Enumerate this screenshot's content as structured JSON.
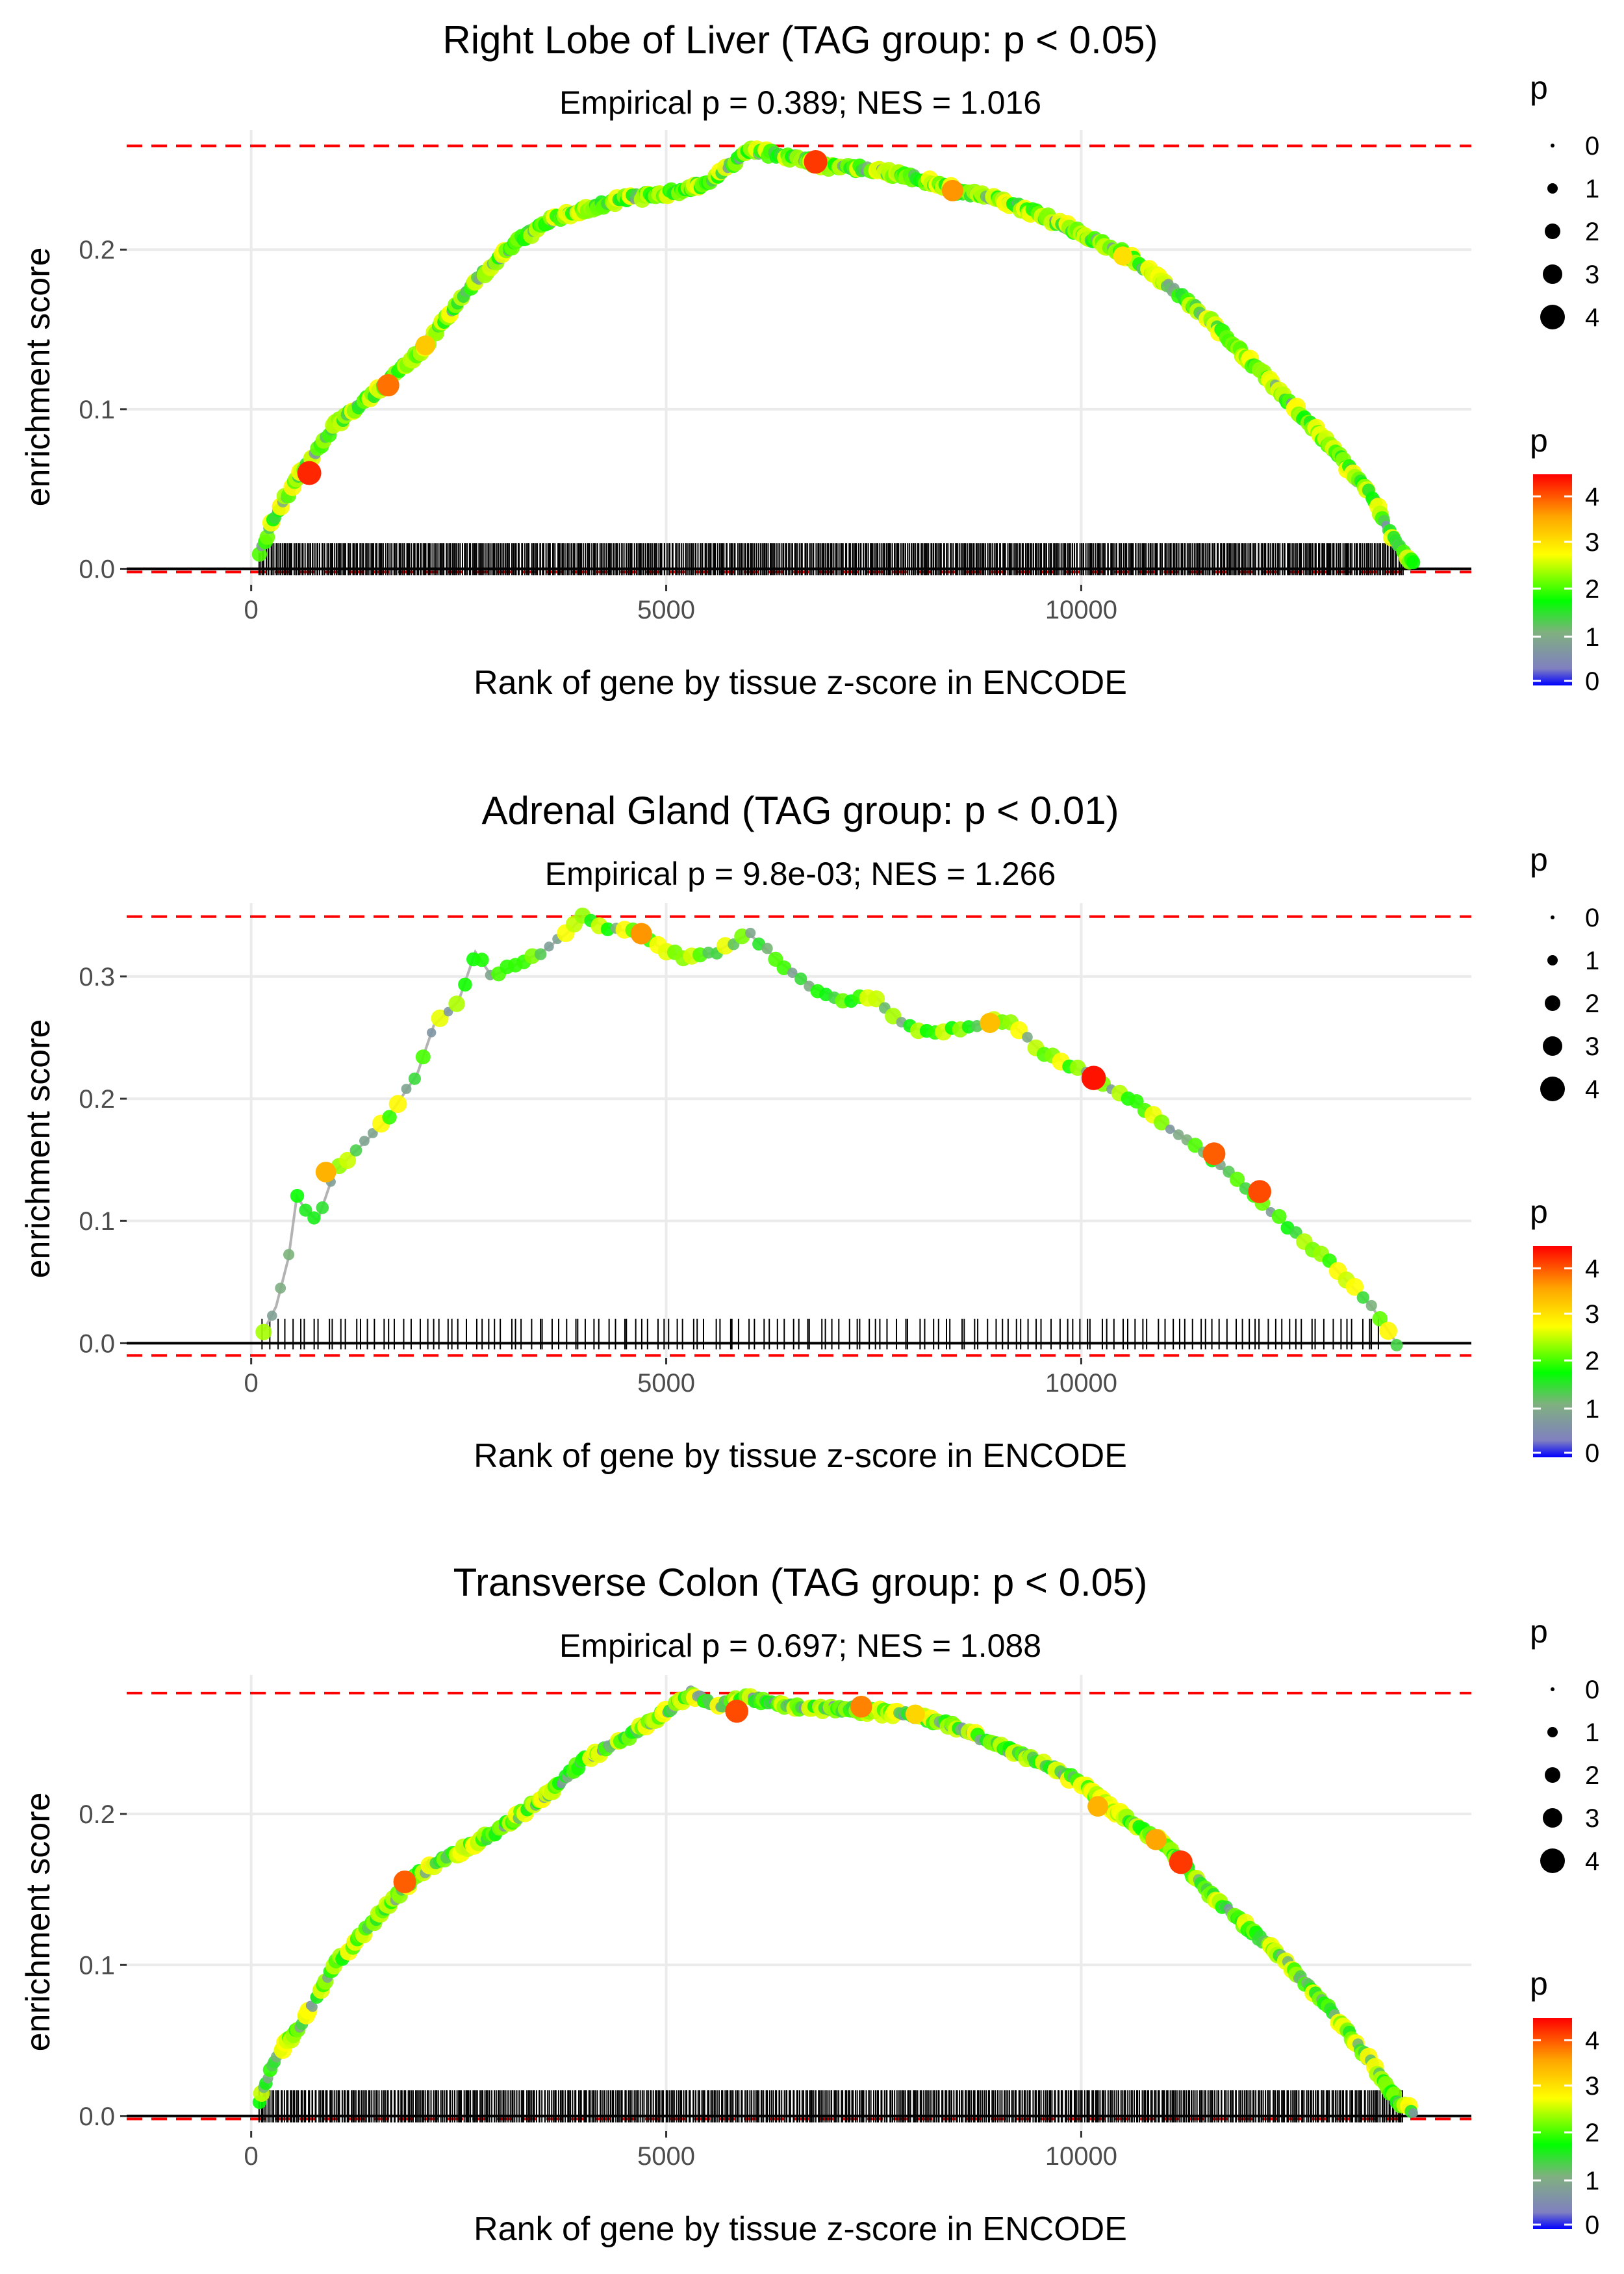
{
  "chart_data": [
    {
      "type": "scatter",
      "title": "Right Lobe of Liver (TAG group: p < 0.05)",
      "subtitle": "Empirical p = 0.389; NES = 1.016",
      "xlabel": "Rank of gene by tissue z-score in ENCODE",
      "ylabel": "enrichment score",
      "xlim": [
        -1500,
        14700
      ],
      "ylim": [
        -0.01,
        0.275
      ],
      "x_ticks": [
        0,
        5000,
        10000
      ],
      "x_tick_labels": [
        "0",
        "5000",
        "10000"
      ],
      "y_ticks": [
        0.0,
        0.1,
        0.2
      ],
      "y_tick_labels": [
        "0.0",
        "0.1",
        "0.2"
      ],
      "max_es": 0.265,
      "min_es": -0.002,
      "curve": [
        [
          100,
          0.01
        ],
        [
          300,
          0.035
        ],
        [
          600,
          0.06
        ],
        [
          1000,
          0.09
        ],
        [
          1600,
          0.115
        ],
        [
          2100,
          0.14
        ],
        [
          2600,
          0.175
        ],
        [
          3200,
          0.205
        ],
        [
          3600,
          0.218
        ],
        [
          4000,
          0.225
        ],
        [
          4500,
          0.232
        ],
        [
          5000,
          0.235
        ],
        [
          5500,
          0.242
        ],
        [
          6000,
          0.262
        ],
        [
          6500,
          0.258
        ],
        [
          7000,
          0.252
        ],
        [
          7500,
          0.25
        ],
        [
          8000,
          0.245
        ],
        [
          8500,
          0.237
        ],
        [
          9000,
          0.232
        ],
        [
          9500,
          0.222
        ],
        [
          10000,
          0.21
        ],
        [
          10500,
          0.198
        ],
        [
          11000,
          0.18
        ],
        [
          11500,
          0.158
        ],
        [
          12000,
          0.132
        ],
        [
          12500,
          0.105
        ],
        [
          13000,
          0.077
        ],
        [
          13500,
          0.045
        ],
        [
          13800,
          0.015
        ],
        [
          14000,
          0.003
        ]
      ],
      "highlight_points": [
        [
          700,
          0.06,
          4.2
        ],
        [
          1650,
          0.115,
          3.8
        ],
        [
          2100,
          0.14,
          3.2
        ],
        [
          6800,
          0.255,
          4.1
        ],
        [
          8450,
          0.237,
          3.6
        ],
        [
          10500,
          0.196,
          3.0
        ]
      ],
      "rug": {
        "start": 100,
        "end": 13900,
        "count": 700,
        "seed": 11,
        "height": 0.016
      },
      "legend_size_title": "p",
      "legend_size_values": [
        "0",
        "1",
        "2",
        "3",
        "4"
      ],
      "legend_color_title": "p",
      "legend_color_ticks": [
        "0",
        "1",
        "2",
        "3",
        "4"
      ]
    },
    {
      "type": "scatter",
      "title": "Adrenal Gland (TAG group: p < 0.01)",
      "subtitle": "Empirical p = 9.8e-03; NES = 1.266",
      "xlabel": "Rank of gene by tissue z-score in ENCODE",
      "ylabel": "enrichment score",
      "xlim": [
        -1500,
        14700
      ],
      "ylim": [
        -0.012,
        0.36
      ],
      "x_ticks": [
        0,
        5000,
        10000
      ],
      "x_tick_labels": [
        "0",
        "5000",
        "10000"
      ],
      "y_ticks": [
        0.0,
        0.1,
        0.2,
        0.3
      ],
      "y_tick_labels": [
        "0.0",
        "0.1",
        "0.2",
        "0.3"
      ],
      "max_es": 0.349,
      "min_es": -0.01,
      "curve": [
        [
          150,
          0.01
        ],
        [
          300,
          0.03
        ],
        [
          450,
          0.07
        ],
        [
          550,
          0.12
        ],
        [
          650,
          0.11
        ],
        [
          800,
          0.1
        ],
        [
          1000,
          0.14
        ],
        [
          1300,
          0.16
        ],
        [
          1600,
          0.18
        ],
        [
          1800,
          0.2
        ],
        [
          2000,
          0.22
        ],
        [
          2200,
          0.26
        ],
        [
          2500,
          0.28
        ],
        [
          2700,
          0.32
        ],
        [
          2900,
          0.3
        ],
        [
          3200,
          0.31
        ],
        [
          3500,
          0.32
        ],
        [
          3800,
          0.335
        ],
        [
          4000,
          0.349
        ],
        [
          4300,
          0.34
        ],
        [
          4700,
          0.335
        ],
        [
          5000,
          0.32
        ],
        [
          5300,
          0.315
        ],
        [
          5600,
          0.32
        ],
        [
          6000,
          0.335
        ],
        [
          6400,
          0.31
        ],
        [
          6800,
          0.29
        ],
        [
          7200,
          0.28
        ],
        [
          7500,
          0.285
        ],
        [
          7900,
          0.258
        ],
        [
          8300,
          0.255
        ],
        [
          8700,
          0.26
        ],
        [
          9100,
          0.265
        ],
        [
          9500,
          0.24
        ],
        [
          9800,
          0.23
        ],
        [
          10200,
          0.215
        ],
        [
          10600,
          0.2
        ],
        [
          11000,
          0.18
        ],
        [
          11500,
          0.155
        ],
        [
          12000,
          0.125
        ],
        [
          12500,
          0.095
        ],
        [
          13000,
          0.065
        ],
        [
          13500,
          0.03
        ],
        [
          13800,
          0.0
        ]
      ],
      "highlight_points": [
        [
          900,
          0.14,
          3.4
        ],
        [
          4700,
          0.335,
          3.6
        ],
        [
          8900,
          0.262,
          3.3
        ],
        [
          10150,
          0.217,
          4.3
        ],
        [
          11600,
          0.155,
          3.9
        ],
        [
          12150,
          0.124,
          4.0
        ]
      ],
      "rug": {
        "start": 150,
        "end": 13700,
        "count": 160,
        "seed": 23,
        "height": 0.02
      },
      "legend_size_title": "p",
      "legend_size_values": [
        "0",
        "1",
        "2",
        "3",
        "4"
      ],
      "legend_color_title": "p",
      "legend_color_ticks": [
        "0",
        "1",
        "2",
        "3",
        "4"
      ]
    },
    {
      "type": "scatter",
      "title": "Transverse Colon (TAG group: p < 0.05)",
      "subtitle": "Empirical p = 0.697; NES = 1.088",
      "xlabel": "Rank of gene by tissue z-score in ENCODE",
      "ylabel": "enrichment score",
      "xlim": [
        -1500,
        14700
      ],
      "ylim": [
        -0.01,
        0.292
      ],
      "x_ticks": [
        0,
        5000,
        10000
      ],
      "x_tick_labels": [
        "0",
        "5000",
        "10000"
      ],
      "y_ticks": [
        0.0,
        0.1,
        0.2
      ],
      "y_tick_labels": [
        "0.0",
        "0.1",
        "0.2"
      ],
      "max_es": 0.28,
      "min_es": -0.002,
      "curve": [
        [
          100,
          0.01
        ],
        [
          300,
          0.04
        ],
        [
          600,
          0.06
        ],
        [
          1000,
          0.1
        ],
        [
          1500,
          0.13
        ],
        [
          2000,
          0.16
        ],
        [
          2500,
          0.175
        ],
        [
          3000,
          0.19
        ],
        [
          3500,
          0.21
        ],
        [
          4000,
          0.235
        ],
        [
          4500,
          0.25
        ],
        [
          5000,
          0.268
        ],
        [
          5300,
          0.28
        ],
        [
          5600,
          0.272
        ],
        [
          6000,
          0.277
        ],
        [
          6500,
          0.271
        ],
        [
          7000,
          0.27
        ],
        [
          7500,
          0.268
        ],
        [
          8000,
          0.265
        ],
        [
          8500,
          0.258
        ],
        [
          9000,
          0.245
        ],
        [
          9500,
          0.235
        ],
        [
          10000,
          0.22
        ],
        [
          10500,
          0.198
        ],
        [
          11000,
          0.18
        ],
        [
          11500,
          0.15
        ],
        [
          12000,
          0.125
        ],
        [
          12500,
          0.1
        ],
        [
          13000,
          0.07
        ],
        [
          13500,
          0.035
        ],
        [
          13800,
          0.01
        ],
        [
          14000,
          0.003
        ]
      ],
      "highlight_points": [
        [
          1850,
          0.155,
          3.9
        ],
        [
          5850,
          0.268,
          4.0
        ],
        [
          7350,
          0.271,
          3.7
        ],
        [
          8000,
          0.266,
          3.1
        ],
        [
          10200,
          0.205,
          3.4
        ],
        [
          10900,
          0.183,
          3.5
        ],
        [
          11200,
          0.168,
          4.1
        ]
      ],
      "rug": {
        "start": 100,
        "end": 13900,
        "count": 640,
        "seed": 37,
        "height": 0.017
      },
      "legend_size_title": "p",
      "legend_size_values": [
        "0",
        "1",
        "2",
        "3",
        "4"
      ],
      "legend_color_title": "p",
      "legend_color_ticks": [
        "0",
        "1",
        "2",
        "3",
        "4"
      ]
    }
  ]
}
